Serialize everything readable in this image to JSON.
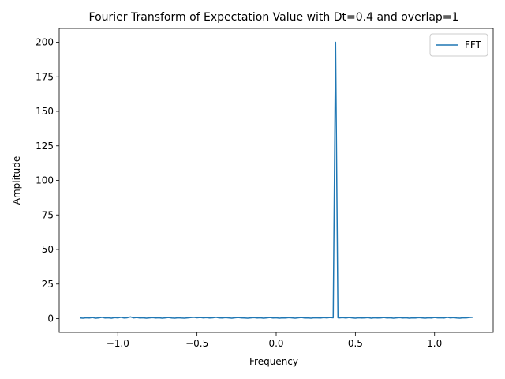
{
  "chart_data": {
    "type": "line",
    "title": "Fourier Transform of Expectation Value with Dt=0.4 and overlap=1",
    "xlabel": "Frequency",
    "ylabel": "Amplitude",
    "xlim": [
      -1.37,
      1.37
    ],
    "ylim": [
      -10,
      210
    ],
    "xticks": [
      -1.0,
      -0.5,
      0.0,
      0.5,
      1.0
    ],
    "xtick_labels": [
      "−1.0",
      "−0.5",
      "0.0",
      "0.5",
      "1.0"
    ],
    "yticks": [
      0,
      25,
      50,
      75,
      100,
      125,
      150,
      175,
      200
    ],
    "ytick_labels": [
      "0",
      "25",
      "50",
      "75",
      "100",
      "125",
      "150",
      "175",
      "200"
    ],
    "grid": false,
    "legend": {
      "position": "top-right",
      "entries": [
        "FFT"
      ]
    },
    "series": [
      {
        "name": "FFT",
        "color": "#1f77b4",
        "x": [
          -1.24,
          -1.22,
          -1.2,
          -1.18,
          -1.16,
          -1.14,
          -1.12,
          -1.1,
          -1.08,
          -1.06,
          -1.04,
          -1.02,
          -1.0,
          -0.98,
          -0.96,
          -0.94,
          -0.92,
          -0.9,
          -0.88,
          -0.86,
          -0.84,
          -0.82,
          -0.8,
          -0.78,
          -0.76,
          -0.74,
          -0.72,
          -0.7,
          -0.68,
          -0.66,
          -0.64,
          -0.62,
          -0.6,
          -0.58,
          -0.56,
          -0.54,
          -0.52,
          -0.5,
          -0.48,
          -0.46,
          -0.44,
          -0.42,
          -0.4,
          -0.38,
          -0.36,
          -0.34,
          -0.32,
          -0.3,
          -0.28,
          -0.26,
          -0.24,
          -0.22,
          -0.2,
          -0.18,
          -0.16,
          -0.14,
          -0.12,
          -0.1,
          -0.08,
          -0.06,
          -0.04,
          -0.02,
          0.0,
          0.02,
          0.04,
          0.06,
          0.08,
          0.1,
          0.12,
          0.14,
          0.16,
          0.18,
          0.2,
          0.22,
          0.24,
          0.26,
          0.28,
          0.3,
          0.32,
          0.34,
          0.36,
          0.375,
          0.39,
          0.4,
          0.42,
          0.44,
          0.46,
          0.48,
          0.5,
          0.52,
          0.54,
          0.56,
          0.58,
          0.6,
          0.62,
          0.64,
          0.66,
          0.68,
          0.7,
          0.72,
          0.74,
          0.76,
          0.78,
          0.8,
          0.82,
          0.84,
          0.86,
          0.88,
          0.9,
          0.92,
          0.94,
          0.96,
          0.98,
          1.0,
          1.02,
          1.04,
          1.06,
          1.08,
          1.1,
          1.12,
          1.14,
          1.16,
          1.18,
          1.2,
          1.22,
          1.24
        ],
        "y": [
          0.5,
          0.3,
          0.6,
          0.4,
          0.8,
          0.3,
          0.5,
          0.9,
          0.4,
          0.6,
          0.3,
          0.7,
          0.5,
          0.9,
          0.4,
          0.6,
          1.2,
          0.5,
          0.8,
          0.4,
          0.6,
          0.3,
          0.5,
          0.7,
          0.4,
          0.6,
          0.3,
          0.5,
          0.8,
          0.4,
          0.3,
          0.6,
          0.4,
          0.3,
          0.5,
          0.7,
          0.9,
          0.6,
          0.8,
          0.5,
          0.7,
          0.4,
          0.6,
          0.9,
          0.5,
          0.4,
          0.7,
          0.5,
          0.3,
          0.6,
          0.8,
          0.5,
          0.4,
          0.3,
          0.5,
          0.7,
          0.4,
          0.6,
          0.3,
          0.5,
          0.8,
          0.4,
          0.6,
          0.3,
          0.5,
          0.4,
          0.7,
          0.5,
          0.3,
          0.6,
          0.8,
          0.4,
          0.5,
          0.3,
          0.6,
          0.5,
          0.4,
          0.7,
          0.5,
          0.8,
          0.6,
          200.0,
          0.6,
          0.5,
          0.7,
          0.4,
          0.8,
          0.5,
          0.3,
          0.6,
          0.4,
          0.5,
          0.7,
          0.3,
          0.6,
          0.4,
          0.5,
          0.8,
          0.4,
          0.6,
          0.3,
          0.5,
          0.7,
          0.4,
          0.6,
          0.3,
          0.5,
          0.4,
          0.7,
          0.5,
          0.3,
          0.6,
          0.4,
          0.8,
          0.5,
          0.6,
          0.4,
          0.9,
          0.5,
          0.7,
          0.4,
          0.3,
          0.6,
          0.5,
          0.8,
          0.9
        ]
      }
    ]
  }
}
